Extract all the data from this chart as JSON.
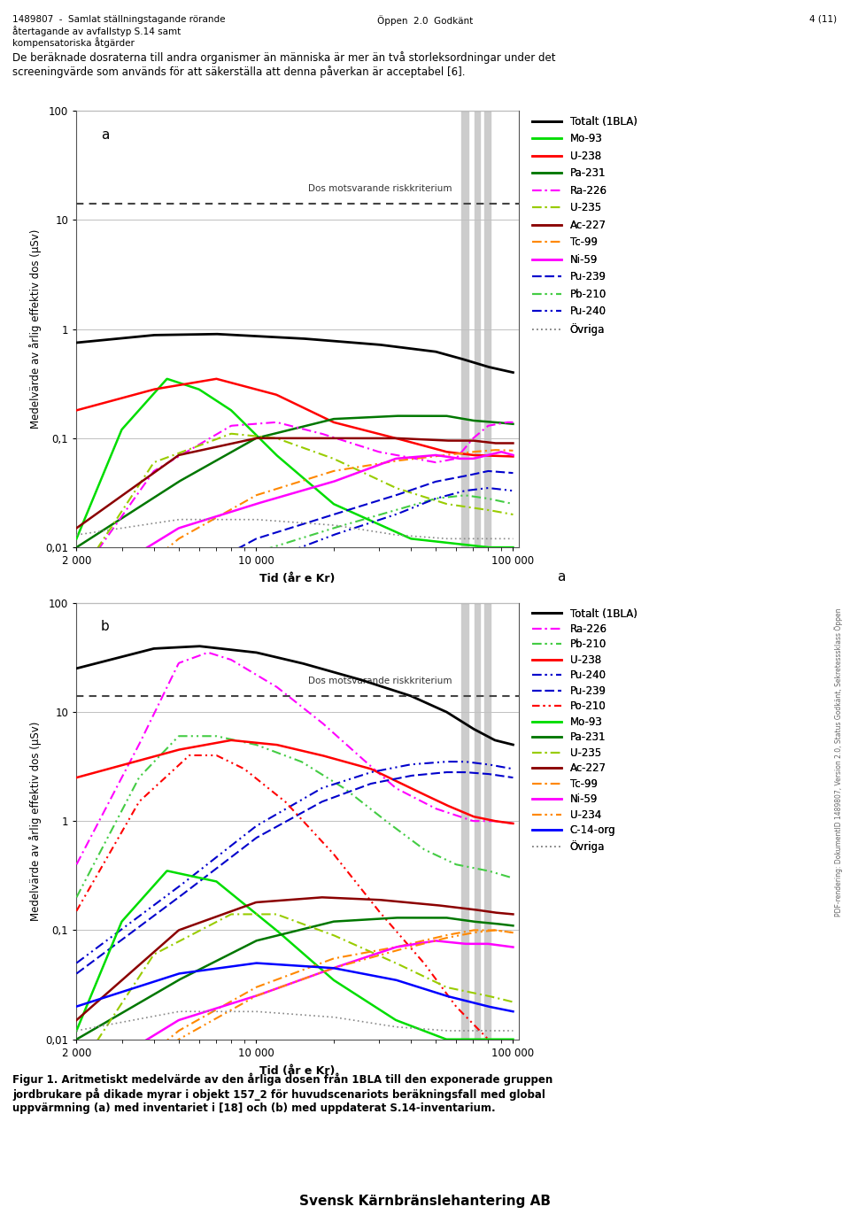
{
  "header_left": "1489807  -  Samlat ställningstagande rörande\nåtertagande av avfallstyp S.14 samt\nkompensatoriska åtgärder",
  "header_center": "Öppen  2.0  Godkänt",
  "header_right": "4 (11)",
  "paragraph": "De beräknade dosraterna till andra organismer än människa är mer än två storleksordningar under det\nscreeningvärde som används för att säkerställa att denna påverkan är acceptabel [6].",
  "plot_a_label": "a",
  "plot_b_label": "b",
  "risk_label": "Dos motsvarande riskkriterium",
  "risk_value": 14,
  "ylabel": "Medelvärde av årlig effektiv dos (µSv)",
  "xlabel": "Tid (år e Kr)",
  "ytick_labels": [
    "0,01",
    "0,1",
    "1",
    "10",
    "100"
  ],
  "xtick_labels": [
    "2 000",
    "10 000",
    "100 000"
  ],
  "footer": "Figur 1. Aritmetiskt medelvärde av den årliga dosen från 1BLA till den exponerade gruppen\njordbrukare på dikade myrar i objekt 157_2 för huvudscenariots beräkningsfall med global\nuppvärmning (a) med inventariet i [18] och (b) med uppdaterat S.14-inventarium.",
  "company": "Svensk Kärnbränslehantering AB",
  "side_text": "PDF-rendering: DokumentID 1489807, Version 2.0, Status Godkänt, Sekretesssklass Öppen",
  "legend_a": [
    {
      "label": "Totalt (1BLA)",
      "color": "#000000",
      "ls": "solid",
      "lw": 2.0
    },
    {
      "label": "Mo-93",
      "color": "#00dd00",
      "ls": "solid",
      "lw": 1.8
    },
    {
      "label": "U-238",
      "color": "#ff0000",
      "ls": "solid",
      "lw": 1.8
    },
    {
      "label": "Pa-231",
      "color": "#007700",
      "ls": "solid",
      "lw": 1.8
    },
    {
      "label": "Ra-226",
      "color": "#ff00ff",
      "ls": "dashdot_dense",
      "lw": 1.5
    },
    {
      "label": "U-235",
      "color": "#99cc00",
      "ls": "dashdot_dense",
      "lw": 1.5
    },
    {
      "label": "Ac-227",
      "color": "#8b0000",
      "ls": "solid",
      "lw": 1.8
    },
    {
      "label": "Tc-99",
      "color": "#ff8800",
      "ls": "dashdot_dense",
      "lw": 1.5
    },
    {
      "label": "Ni-59",
      "color": "#ff00ff",
      "ls": "solid",
      "lw": 1.8
    },
    {
      "label": "Pu-239",
      "color": "#0000cc",
      "ls": "dashed_dense",
      "lw": 1.5
    },
    {
      "label": "Pb-210",
      "color": "#44cc44",
      "ls": "dashdotdot",
      "lw": 1.5
    },
    {
      "label": "Pu-240",
      "color": "#0000cc",
      "ls": "dashdotdot",
      "lw": 1.5
    },
    {
      "label": "Övriga",
      "color": "#888888",
      "ls": "dotted",
      "lw": 1.2
    }
  ],
  "legend_b": [
    {
      "label": "Totalt (1BLA)",
      "color": "#000000",
      "ls": "solid",
      "lw": 2.0
    },
    {
      "label": "Ra-226",
      "color": "#ff00ff",
      "ls": "dashdot_dense",
      "lw": 1.5
    },
    {
      "label": "Pb-210",
      "color": "#44cc44",
      "ls": "dashdotdot",
      "lw": 1.5
    },
    {
      "label": "U-238",
      "color": "#ff0000",
      "ls": "solid",
      "lw": 1.8
    },
    {
      "label": "Pu-240",
      "color": "#0000cc",
      "ls": "dashdotdot",
      "lw": 1.5
    },
    {
      "label": "Pu-239",
      "color": "#0000cc",
      "ls": "dashed_dense",
      "lw": 1.5
    },
    {
      "label": "Po-210",
      "color": "#ff0000",
      "ls": "dashdotdot2",
      "lw": 1.5
    },
    {
      "label": "Mo-93",
      "color": "#00dd00",
      "ls": "solid",
      "lw": 1.8
    },
    {
      "label": "Pa-231",
      "color": "#007700",
      "ls": "solid",
      "lw": 1.8
    },
    {
      "label": "U-235",
      "color": "#99cc00",
      "ls": "dashdot_dense",
      "lw": 1.5
    },
    {
      "label": "Ac-227",
      "color": "#8b0000",
      "ls": "solid",
      "lw": 1.8
    },
    {
      "label": "Tc-99",
      "color": "#ff8800",
      "ls": "dashdot_dense",
      "lw": 1.5
    },
    {
      "label": "Ni-59",
      "color": "#ff00ff",
      "ls": "solid",
      "lw": 1.8
    },
    {
      "label": "U-234",
      "color": "#ff8800",
      "ls": "dashdotdot",
      "lw": 1.5
    },
    {
      "label": "C-14-org",
      "color": "#0000ff",
      "ls": "solid",
      "lw": 1.8
    },
    {
      "label": "Övriga",
      "color": "#888888",
      "ls": "dotted",
      "lw": 1.2
    }
  ]
}
